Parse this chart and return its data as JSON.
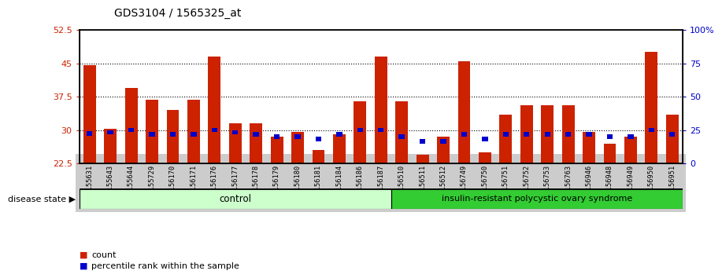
{
  "title": "GDS3104 / 1565325_at",
  "samples": [
    "GSM155631",
    "GSM155643",
    "GSM155644",
    "GSM155729",
    "GSM156170",
    "GSM156171",
    "GSM156176",
    "GSM156177",
    "GSM156178",
    "GSM156179",
    "GSM156180",
    "GSM156181",
    "GSM156184",
    "GSM156186",
    "GSM156187",
    "GSM156510",
    "GSM156511",
    "GSM156512",
    "GSM156749",
    "GSM156750",
    "GSM156751",
    "GSM156752",
    "GSM156753",
    "GSM156763",
    "GSM156946",
    "GSM156948",
    "GSM156949",
    "GSM156950",
    "GSM156951"
  ],
  "red_values": [
    44.5,
    30.2,
    39.5,
    36.8,
    34.5,
    36.8,
    46.5,
    31.5,
    31.5,
    28.5,
    29.5,
    25.5,
    29.0,
    36.5,
    46.5,
    36.5,
    24.5,
    28.5,
    45.5,
    25.0,
    33.5,
    35.5,
    35.5,
    35.5,
    29.5,
    27.0,
    28.5,
    47.5,
    33.5
  ],
  "blue_values": [
    29.2,
    29.5,
    30.0,
    29.0,
    29.0,
    29.0,
    30.0,
    29.5,
    29.0,
    28.5,
    28.5,
    28.0,
    29.0,
    30.0,
    30.0,
    28.5,
    27.5,
    27.5,
    29.0,
    28.0,
    29.0,
    29.0,
    29.0,
    29.0,
    29.0,
    28.5,
    28.5,
    30.0,
    29.0
  ],
  "control_count": 15,
  "disease_count": 14,
  "control_label": "control",
  "disease_label": "insulin-resistant polycystic ovary syndrome",
  "disease_state_label": "disease state",
  "ymin": 22.5,
  "ymax": 52.5,
  "yticks": [
    22.5,
    30,
    37.5,
    45,
    52.5
  ],
  "ytick_labels": [
    "22.5",
    "30",
    "37.5",
    "45",
    "52.5"
  ],
  "right_yticks_pos": [
    22.5,
    30.0,
    37.5,
    45.0,
    52.5
  ],
  "right_ytick_labels": [
    "0",
    "25",
    "50",
    "75",
    "100%"
  ],
  "red_color": "#cc2200",
  "blue_color": "#0000cc",
  "bar_width": 0.6,
  "blue_bar_width": 0.28,
  "blue_bar_height": 1.0,
  "control_bg": "#ccffcc",
  "disease_bg": "#33cc33",
  "legend_red_label": "count",
  "legend_blue_label": "percentile rank within the sample",
  "tick_bg": "#cccccc",
  "grid_color": "black",
  "plot_bg": "white"
}
